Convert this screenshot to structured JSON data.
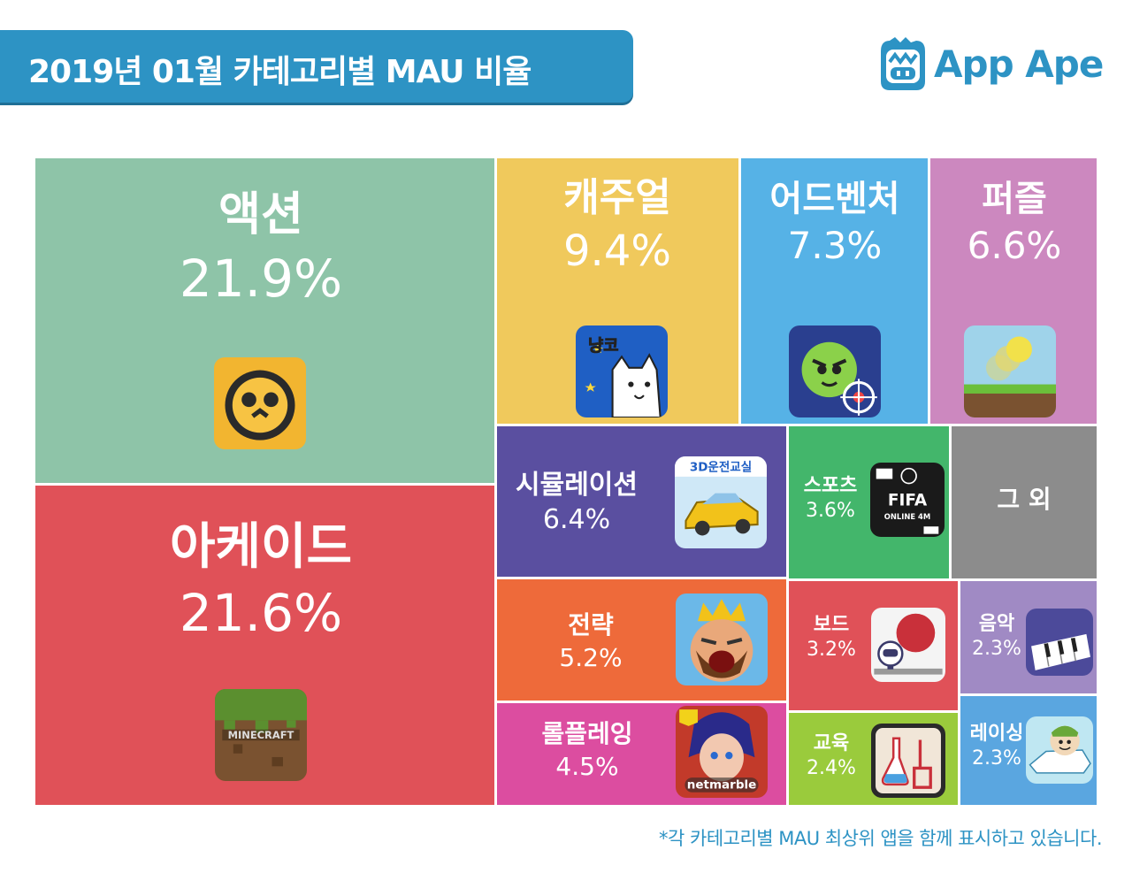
{
  "header": {
    "title": "2019년 01월 카테고리별 MAU 비율",
    "brand": "App Ape"
  },
  "footnote": "*각 카테고리별 MAU 최상위 앱을 함께 표시하고 있습니다.",
  "chart_data": {
    "type": "treemap",
    "title": "2019년 01월 카테고리별 MAU 비율",
    "unit": "%",
    "items": [
      {
        "category": "액션",
        "value": 21.9,
        "label": "21.9%",
        "color": "#8ec4a8",
        "icon": "brawl-stars-skull-icon"
      },
      {
        "category": "아케이드",
        "value": 21.6,
        "label": "21.6%",
        "color": "#e05158",
        "icon": "minecraft-grass-block-icon"
      },
      {
        "category": "캐주얼",
        "value": 9.4,
        "label": "9.4%",
        "color": "#f0c95c",
        "icon": "white-cat-icon"
      },
      {
        "category": "어드벤처",
        "value": 7.3,
        "label": "7.3%",
        "color": "#56b2e6",
        "icon": "green-monster-icon"
      },
      {
        "category": "퍼즐",
        "value": 6.6,
        "label": "6.6%",
        "color": "#cc88bf",
        "icon": "bouncing-ball-icon"
      },
      {
        "category": "시뮬레이션",
        "value": 6.4,
        "label": "6.4%",
        "color": "#5a4fa0",
        "icon": "yellow-car-icon"
      },
      {
        "category": "스포츠",
        "value": 3.6,
        "label": "3.6%",
        "color": "#43b66b",
        "icon": "fifa-online-icon"
      },
      {
        "category": "그 외",
        "value": null,
        "label": "",
        "color": "#8c8c8c",
        "icon": null
      },
      {
        "category": "전략",
        "value": 5.2,
        "label": "5.2%",
        "color": "#ee6a3a",
        "icon": "clash-king-icon"
      },
      {
        "category": "보드",
        "value": 3.2,
        "label": "3.2%",
        "color": "#e05158",
        "icon": "red-ball-robot-icon"
      },
      {
        "category": "음악",
        "value": 2.3,
        "label": "2.3%",
        "color": "#a08ac4",
        "icon": "piano-keys-icon"
      },
      {
        "category": "롤플레잉",
        "value": 4.5,
        "label": "4.5%",
        "color": "#dc4da0",
        "icon": "netmarble-hero-icon"
      },
      {
        "category": "교육",
        "value": 2.4,
        "label": "2.4%",
        "color": "#9acb3c",
        "icon": "science-lab-icon"
      },
      {
        "category": "레이싱",
        "value": 2.3,
        "label": "2.3%",
        "color": "#5aa6e0",
        "icon": "kart-rider-icon"
      }
    ],
    "icon_texts": {
      "white-cat-icon": "냥코",
      "yellow-car-icon": "3D운전교실",
      "fifa-online-icon": "FIFA ONLINE 4M",
      "minecraft-grass-block-icon": "MINECRAFT",
      "netmarble-hero-icon": "netmarble"
    }
  }
}
